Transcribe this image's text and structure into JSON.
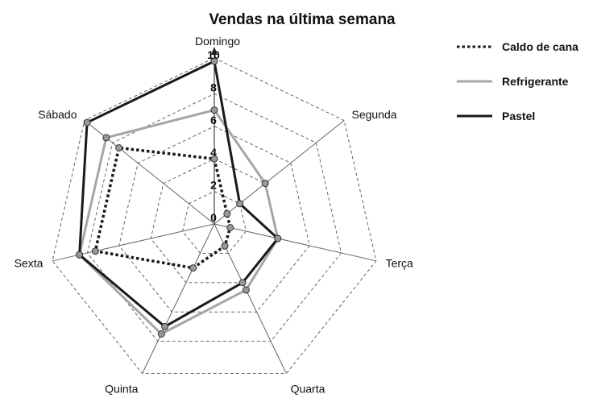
{
  "chart_data": {
    "type": "radar",
    "title": "Vendas na última semana",
    "categories": [
      "Domingo",
      "Segunda",
      "Terça",
      "Quarta",
      "Quinta",
      "Sexta",
      "Sábado"
    ],
    "r_ticks": [
      "0",
      "2",
      "4",
      "6",
      "8",
      "10"
    ],
    "r_range": [
      0,
      10
    ],
    "grid": true,
    "legend_position": "top-right",
    "series": [
      {
        "name": "Caldo de cana",
        "values": [
          4,
          1,
          1,
          1.5,
          3,
          7.5,
          7.5
        ],
        "color": "#1a1a1a",
        "style": "dotted"
      },
      {
        "name": "Refrigerante",
        "values": [
          7,
          4,
          4,
          4.5,
          7.5,
          8.5,
          8.5
        ],
        "color": "#a6a6a6",
        "style": "solid"
      },
      {
        "name": "Pastel",
        "values": [
          10,
          2,
          4,
          4,
          7,
          8.5,
          10
        ],
        "color": "#1a1a1a",
        "style": "solid"
      }
    ]
  }
}
